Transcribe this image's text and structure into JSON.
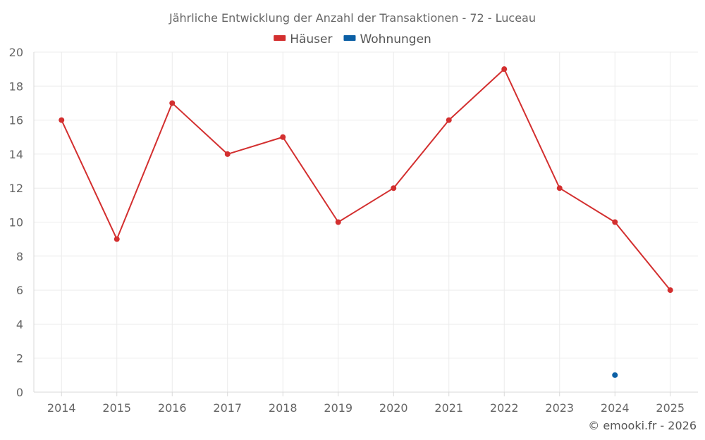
{
  "chart_data": {
    "type": "line",
    "title": "Jährliche Entwicklung der Anzahl der Transaktionen - 72 - Luceau",
    "categories": [
      "2014",
      "2015",
      "2016",
      "2017",
      "2018",
      "2019",
      "2020",
      "2021",
      "2022",
      "2023",
      "2024",
      "2025"
    ],
    "series": [
      {
        "name": "Häuser",
        "color": "#d32f2f",
        "values": [
          16,
          9,
          17,
          14,
          15,
          10,
          12,
          16,
          19,
          12,
          10,
          6
        ]
      },
      {
        "name": "Wohnungen",
        "color": "#0b5fa5",
        "values": [
          null,
          null,
          null,
          null,
          null,
          null,
          null,
          null,
          null,
          null,
          1,
          null
        ]
      }
    ],
    "ylim": [
      0,
      20
    ],
    "yticks": [
      0,
      2,
      4,
      6,
      8,
      10,
      12,
      14,
      16,
      18,
      20
    ],
    "xlabel": "",
    "ylabel": "",
    "grid": true,
    "legend": "top-center"
  },
  "credit": "© emooki.fr - 2026"
}
